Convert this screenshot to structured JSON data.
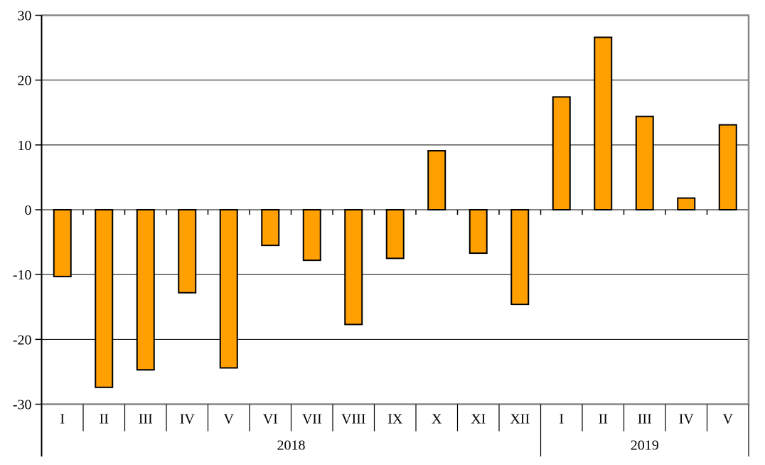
{
  "chart_data": {
    "type": "bar",
    "title": "",
    "xlabel": "",
    "ylabel": "",
    "ylim": [
      -30,
      30
    ],
    "ytick_interval": 10,
    "yticks": [
      30,
      20,
      10,
      0,
      -10,
      -20,
      -30
    ],
    "grid": true,
    "legend": false,
    "categories": [
      "I",
      "II",
      "III",
      "IV",
      "V",
      "VI",
      "VII",
      "VIII",
      "IX",
      "X",
      "XI",
      "XII",
      "I",
      "II",
      "III",
      "IV",
      "V"
    ],
    "values": [
      -10.3,
      -27.4,
      -24.7,
      -12.8,
      -24.4,
      -5.5,
      -7.8,
      -17.7,
      -7.5,
      9.1,
      -6.7,
      -14.6,
      17.4,
      26.6,
      14.4,
      1.8,
      13.1
    ],
    "groups": [
      {
        "year_label": "2018",
        "categories": [
          "I",
          "II",
          "III",
          "IV",
          "V",
          "VI",
          "VII",
          "VIII",
          "IX",
          "X",
          "XI",
          "XII"
        ],
        "values": [
          -10.3,
          -27.4,
          -24.7,
          -12.8,
          -24.4,
          -5.5,
          -7.8,
          -17.7,
          -7.5,
          9.1,
          -6.7,
          -14.6
        ]
      },
      {
        "year_label": "2019",
        "categories": [
          "I",
          "II",
          "III",
          "IV",
          "V"
        ],
        "values": [
          17.4,
          26.6,
          14.4,
          1.8,
          13.1
        ]
      }
    ],
    "colors": {
      "bar_fill": "#FFA000",
      "bar_border": "#000000",
      "gridline": "#000000",
      "axis": "#000000",
      "plot_border": "#878787",
      "text": "#000000",
      "background": "#FFFFFF"
    }
  }
}
